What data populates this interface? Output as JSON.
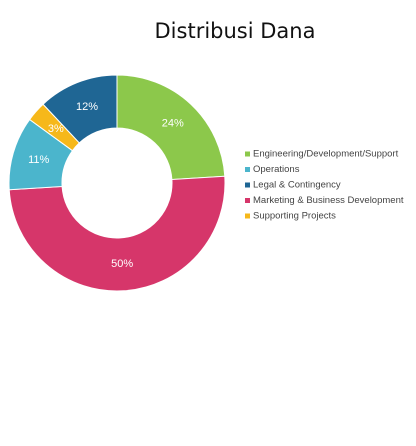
{
  "chart_data": {
    "type": "donut",
    "title": "Distribusi Dana",
    "categories": [
      "Engineering/Development/Support",
      "Marketing & Business Development",
      "Operations",
      "Supporting Projects",
      "Legal & Contingency"
    ],
    "values": [
      24,
      50,
      11,
      3,
      12
    ],
    "value_labels": [
      "24%",
      "50%",
      "11%",
      "3%",
      "12%"
    ],
    "colors": [
      "#8cc84b",
      "#d6366a",
      "#4bb5cc",
      "#f6b81a",
      "#1f6694"
    ]
  }
}
